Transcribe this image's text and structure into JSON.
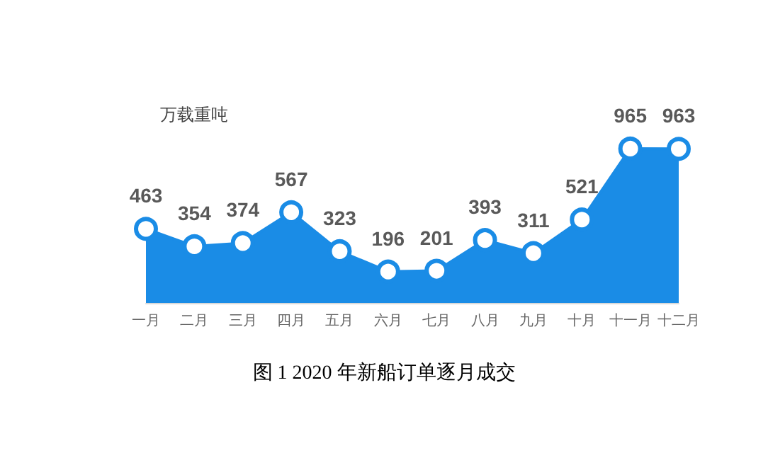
{
  "chart_data": {
    "type": "area",
    "title": "图 1 2020 年新船订单逐月成交",
    "ylabel": "万载重吨",
    "categories": [
      "一月",
      "二月",
      "三月",
      "四月",
      "五月",
      "六月",
      "七月",
      "八月",
      "九月",
      "十月",
      "十一月",
      "十二月"
    ],
    "values": [
      463,
      354,
      374,
      567,
      323,
      196,
      201,
      393,
      311,
      521,
      965,
      963
    ],
    "color": "#1a8ce6",
    "data_labels": true,
    "marker": "circle"
  }
}
